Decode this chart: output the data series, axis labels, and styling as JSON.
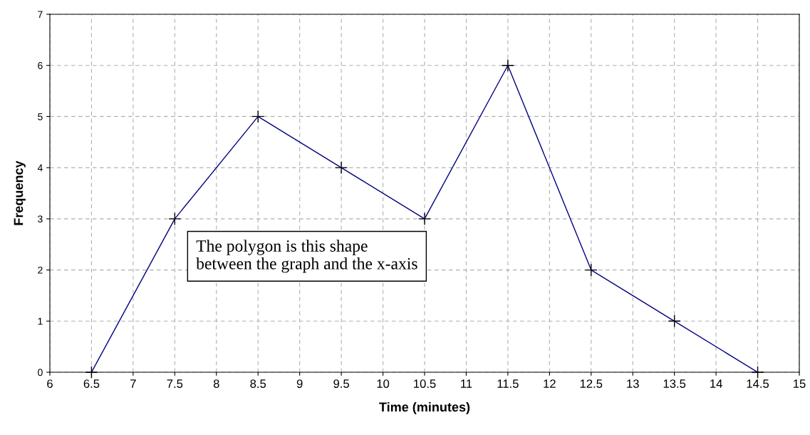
{
  "chart_data": {
    "type": "line",
    "xlabel": "Time (minutes)",
    "ylabel": "Frequency",
    "x": [
      6.5,
      7.5,
      8.5,
      9.5,
      10.5,
      11.5,
      12.5,
      13.5,
      14.5
    ],
    "series": [
      {
        "color": "#000080",
        "values": [
          0,
          3,
          5,
          4,
          3,
          6,
          2,
          1,
          0
        ]
      }
    ],
    "xlim": [
      6,
      15
    ],
    "xticks": [
      6,
      6.5,
      7,
      7.5,
      8,
      8.5,
      9,
      9.5,
      10,
      10.5,
      11,
      11.5,
      12,
      12.5,
      13,
      13.5,
      14,
      14.5,
      15
    ],
    "ylim": [
      0,
      7
    ],
    "yticks": [
      0,
      1,
      2,
      3,
      4,
      5,
      6,
      7
    ],
    "grid": true,
    "marker": "cross",
    "line_style": "solid",
    "annotations": [
      "The polygon is this shape between the graph and the x-axis"
    ]
  }
}
